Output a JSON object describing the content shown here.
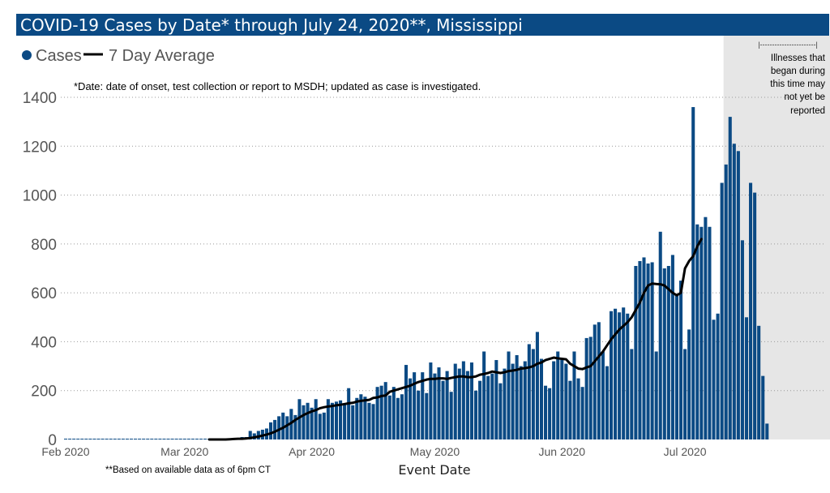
{
  "title": "COVID-19 Cases by Date* through July 24, 2020**, Mississippi",
  "colors": {
    "title_bg": "#0b4a84",
    "bar": "#0b4a84",
    "avg_line": "#000000",
    "shade": "#e6e6e6"
  },
  "legend": {
    "cases_label": "Cases",
    "avg_label": "7 Day Average"
  },
  "footnotes": {
    "date_note": "*Date: date of onset, test collection or report to MSDH; updated as case is investigated.",
    "data_note": "**Based on available data as of 6pm CT"
  },
  "shade_annotation": {
    "bracket": "|-----------------------|",
    "lines": [
      "Illnesses that",
      "began during",
      "this time may",
      "not yet be",
      "reported"
    ]
  },
  "chart_data": {
    "type": "bar",
    "xlabel": "Event Date",
    "ylabel": "",
    "ylim": [
      0,
      1400
    ],
    "yticks": [
      0,
      200,
      400,
      600,
      800,
      1000,
      1200,
      1400
    ],
    "grid": true,
    "legend_position": "top-left",
    "x_tick_labels": [
      "Feb 2020",
      "Mar 2020",
      "Apr 2020",
      "May 2020",
      "Jun 2020",
      "Jul 2020"
    ],
    "start_date": "2020-02-01",
    "shaded_from": "2020-07-11",
    "series": [
      {
        "name": "Cases",
        "values": [
          0,
          0,
          0,
          0,
          0,
          0,
          0,
          0,
          0,
          0,
          0,
          0,
          0,
          0,
          0,
          0,
          0,
          0,
          0,
          0,
          0,
          0,
          0,
          0,
          0,
          0,
          0,
          0,
          0,
          0,
          0,
          0,
          0,
          0,
          0,
          0,
          0,
          1,
          1,
          2,
          3,
          3,
          6,
          10,
          10,
          35,
          25,
          35,
          40,
          45,
          70,
          80,
          95,
          110,
          95,
          125,
          100,
          165,
          140,
          150,
          130,
          165,
          105,
          110,
          165,
          150,
          155,
          160,
          145,
          210,
          140,
          170,
          185,
          175,
          150,
          145,
          215,
          220,
          235,
          180,
          215,
          170,
          185,
          305,
          250,
          275,
          200,
          275,
          190,
          315,
          270,
          295,
          240,
          280,
          195,
          310,
          290,
          320,
          280,
          315,
          200,
          240,
          360,
          260,
          270,
          325,
          230,
          290,
          360,
          310,
          345,
          300,
          320,
          390,
          370,
          440,
          330,
          220,
          210,
          320,
          360,
          330,
          310,
          240,
          360,
          250,
          215,
          415,
          420,
          470,
          480,
          360,
          300,
          525,
          535,
          520,
          540,
          515,
          370,
          710,
          730,
          745,
          720,
          725,
          360,
          850,
          700,
          710,
          755,
          590,
          650,
          370,
          450,
          1360,
          880,
          870,
          910,
          870,
          490,
          515,
          1050,
          1125,
          1320,
          1210,
          1180,
          815,
          500,
          1050,
          1010,
          465,
          260,
          65
        ],
        "value_labels": []
      },
      {
        "name": "7 Day Average",
        "x_start_index": 35,
        "values": [
          0,
          0,
          0,
          0,
          0,
          1,
          2,
          3,
          3,
          4,
          6,
          9,
          12,
          16,
          20,
          25,
          32,
          40,
          48,
          58,
          68,
          80,
          90,
          100,
          108,
          115,
          120,
          128,
          132,
          135,
          137,
          140,
          142,
          145,
          148,
          150,
          155,
          158,
          160,
          162,
          170,
          172,
          178,
          180,
          195,
          200,
          205,
          210,
          215,
          220,
          228,
          235,
          240,
          245,
          248,
          248,
          250,
          250,
          248,
          252,
          255,
          258,
          258,
          255,
          255,
          258,
          265,
          268,
          272,
          278,
          275,
          272,
          275,
          280,
          282,
          285,
          290,
          292,
          295,
          300,
          310,
          315,
          325,
          330,
          335,
          332,
          330,
          328,
          310,
          300,
          290,
          288,
          295,
          300,
          320,
          340,
          360,
          385,
          410,
          430,
          450,
          465,
          480,
          500,
          530,
          560,
          600,
          630,
          638,
          636,
          635,
          630,
          615,
          600,
          590,
          600,
          700,
          730,
          750,
          790,
          820
        ]
      }
    ]
  }
}
